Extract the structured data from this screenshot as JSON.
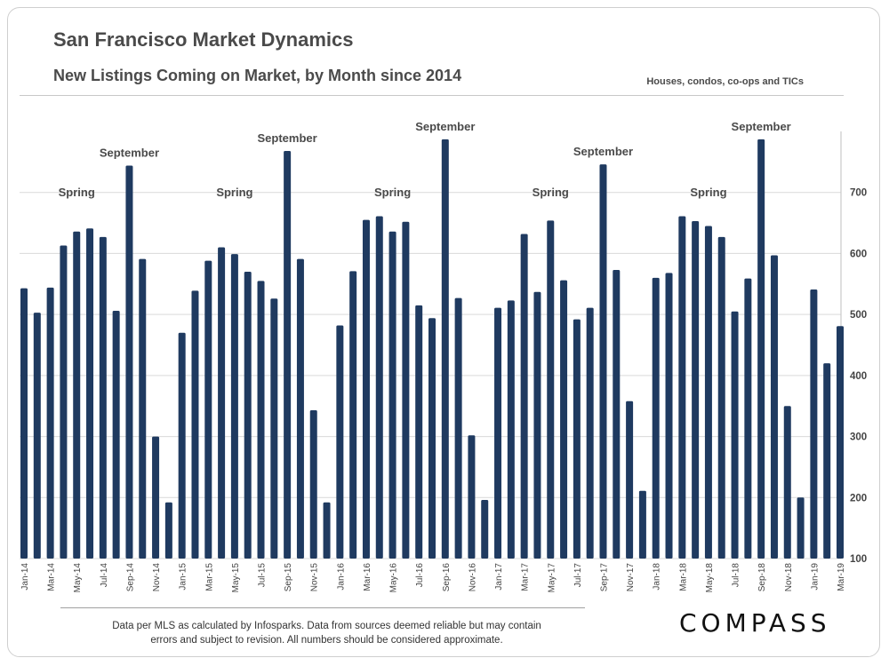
{
  "header": {
    "title": "San Francisco Market Dynamics",
    "subtitle": "New Listings Coming on Market, by Month since 2014",
    "note": "Houses, condos, co-ops and TICs"
  },
  "footer": {
    "line1": "Data per MLS as calculated by Infosparks. Data from sources deemed reliable but may contain",
    "line2": "errors and subject to revision. All numbers should be considered approximate.",
    "logo": "COMPASS"
  },
  "colors": {
    "bar": "#1f3a60",
    "grid": "#d9d9d9",
    "axis_text": "#444444"
  },
  "chart_data": {
    "type": "bar",
    "title": "New Listings Coming on Market, by Month since 2014",
    "xlabel": "",
    "ylabel": "",
    "ylim": [
      100,
      800
    ],
    "yticks": [
      100,
      200,
      300,
      400,
      500,
      600,
      700
    ],
    "y_axis_side": "right",
    "grid": true,
    "categories": [
      "Jan-14",
      "Feb-14",
      "Mar-14",
      "Apr-14",
      "May-14",
      "Jun-14",
      "Jul-14",
      "Aug-14",
      "Sep-14",
      "Oct-14",
      "Nov-14",
      "Dec-14",
      "Jan-15",
      "Feb-15",
      "Mar-15",
      "Apr-15",
      "May-15",
      "Jun-15",
      "Jul-15",
      "Aug-15",
      "Sep-15",
      "Oct-15",
      "Nov-15",
      "Dec-15",
      "Jan-16",
      "Feb-16",
      "Mar-16",
      "Apr-16",
      "May-16",
      "Jun-16",
      "Jul-16",
      "Aug-16",
      "Sep-16",
      "Oct-16",
      "Nov-16",
      "Dec-16",
      "Jan-17",
      "Feb-17",
      "Mar-17",
      "Apr-17",
      "May-17",
      "Jun-17",
      "Jul-17",
      "Aug-17",
      "Sep-17",
      "Oct-17",
      "Nov-17",
      "Dec-17",
      "Jan-18",
      "Feb-18",
      "Mar-18",
      "Apr-18",
      "May-18",
      "Jun-18",
      "Jul-18",
      "Aug-18",
      "Sep-18",
      "Oct-18",
      "Nov-18",
      "Dec-18",
      "Jan-19",
      "Feb-19",
      "Mar-19"
    ],
    "tick_labels": [
      "Jan-14",
      "",
      "Mar-14",
      "",
      "May-14",
      "",
      "Jul-14",
      "",
      "Sep-14",
      "",
      "Nov-14",
      "",
      "Jan-15",
      "",
      "Mar-15",
      "",
      "May-15",
      "",
      "Jul-15",
      "",
      "Sep-15",
      "",
      "Nov-15",
      "",
      "Jan-16",
      "",
      "Mar-16",
      "",
      "May-16",
      "",
      "Jul-16",
      "",
      "Sep-16",
      "",
      "Nov-16",
      "",
      "Jan-17",
      "",
      "Mar-17",
      "",
      "May-17",
      "",
      "Jul-17",
      "",
      "Sep-17",
      "",
      "Nov-17",
      "",
      "Jan-18",
      "",
      "Mar-18",
      "",
      "May-18",
      "",
      "Jul-18",
      "",
      "Sep-18",
      "",
      "Nov-18",
      "",
      "Jan-19",
      "",
      "Mar-19"
    ],
    "values": [
      543,
      503,
      544,
      613,
      636,
      641,
      627,
      506,
      744,
      591,
      300,
      192,
      470,
      539,
      588,
      610,
      599,
      570,
      555,
      526,
      768,
      591,
      343,
      192,
      482,
      571,
      655,
      661,
      636,
      652,
      515,
      494,
      787,
      527,
      302,
      196,
      511,
      523,
      632,
      537,
      654,
      556,
      492,
      511,
      746,
      573,
      358,
      211,
      560,
      568,
      661,
      653,
      645,
      627,
      505,
      559,
      787,
      597,
      350,
      200,
      541,
      420,
      481
    ],
    "annotations": [
      {
        "text": "Spring",
        "index": 4
      },
      {
        "text": "September",
        "index": 8
      },
      {
        "text": "Spring",
        "index": 16
      },
      {
        "text": "September",
        "index": 20
      },
      {
        "text": "Spring",
        "index": 28
      },
      {
        "text": "September",
        "index": 32
      },
      {
        "text": "Spring",
        "index": 40
      },
      {
        "text": "September",
        "index": 44
      },
      {
        "text": "Spring",
        "index": 52
      },
      {
        "text": "September",
        "index": 56
      }
    ]
  }
}
